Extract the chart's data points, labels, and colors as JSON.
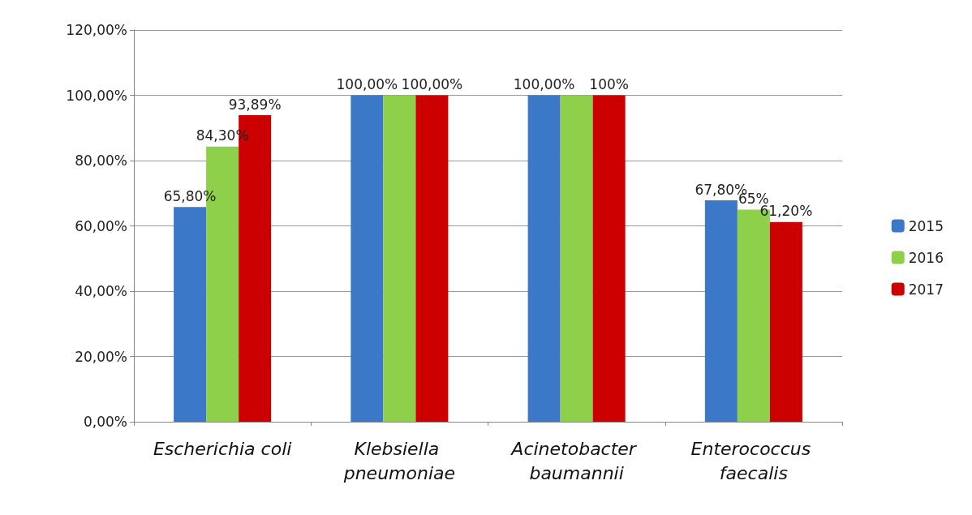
{
  "chart_data": {
    "type": "bar",
    "categories": [
      "Escherichia coli",
      "Klebsiella pneumoniae",
      "Acinetobacter baumannii",
      "Enterococcus faecalis"
    ],
    "series": [
      {
        "name": "2015",
        "color": "#3b78c8",
        "values": [
          65.8,
          100,
          100,
          67.8
        ],
        "value_labels": [
          "65,80%",
          "100,00%",
          "100,00%",
          "67,80%"
        ]
      },
      {
        "name": "2016",
        "color": "#8fd04a",
        "values": [
          84.3,
          100,
          100,
          65
        ],
        "value_labels": [
          "84,30%",
          null,
          null,
          "65%"
        ]
      },
      {
        "name": "2017",
        "color": "#cc0000",
        "values": [
          93.89,
          100,
          100,
          61.2
        ],
        "value_labels": [
          "93,89%",
          "100,00%",
          "100%",
          "61,20%"
        ]
      }
    ],
    "ylim": [
      0,
      120
    ],
    "yticks": [
      {
        "value": 0,
        "label": "0,00%"
      },
      {
        "value": 20,
        "label": "20,00%"
      },
      {
        "value": 40,
        "label": "40,00%"
      },
      {
        "value": 60,
        "label": "60,00%"
      },
      {
        "value": 80,
        "label": "80,00%"
      },
      {
        "value": 100,
        "label": "100,00%"
      },
      {
        "value": 120,
        "label": "120,00%"
      }
    ],
    "grid": "y",
    "legend": "right"
  }
}
